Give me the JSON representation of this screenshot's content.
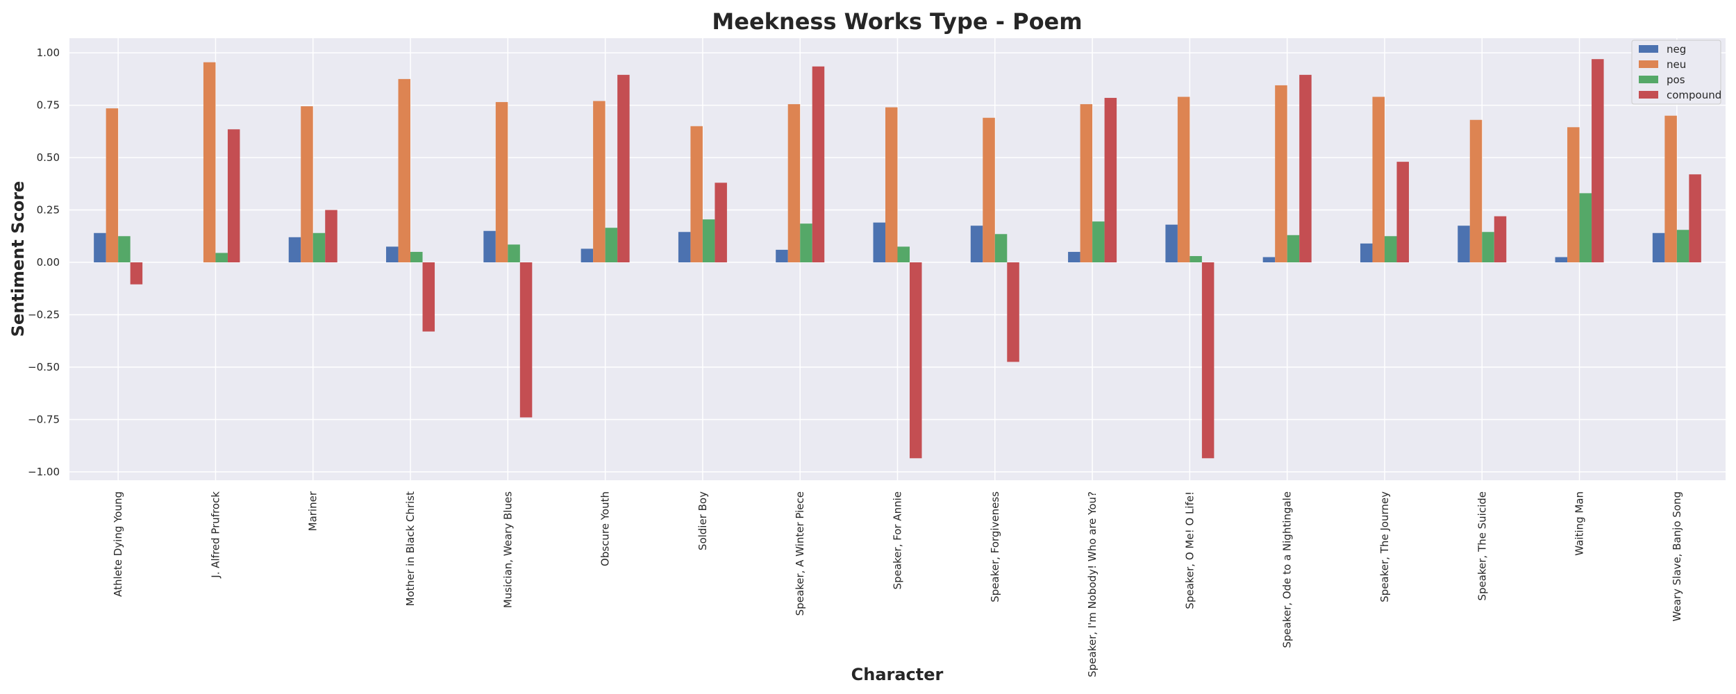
{
  "chart_data": {
    "type": "bar",
    "title": "Meekness Works Type - Poem",
    "xlabel": "Character",
    "ylabel": "Sentiment Score",
    "ylim": [
      -1.04,
      1.07
    ],
    "yticks": [
      "1.00",
      "0.75",
      "0.50",
      "0.25",
      "0.00",
      "−0.25",
      "−0.50",
      "−0.75",
      "−1.00"
    ],
    "ytick_values": [
      1.0,
      0.75,
      0.5,
      0.25,
      0.0,
      -0.25,
      -0.5,
      -0.75,
      -1.0
    ],
    "grid": true,
    "legend_position": "top-right",
    "categories": [
      "Athlete Dying Young",
      "J. Alfred Prufrock",
      "Mariner",
      "Mother in Black Christ",
      "Musician, Weary Blues",
      "Obscure Youth",
      "Soldier Boy",
      "Speaker, A Winter Piece",
      "Speaker, For Annie",
      "Speaker, Forgiveness",
      "Speaker, I'm Nobody! Who are You?",
      "Speaker, O Me! O Life!",
      "Speaker, Ode to a Nightingale",
      "Speaker, The Journey",
      "Speaker, The Suicide",
      "Waiting Man",
      "Weary Slave, Banjo Song"
    ],
    "series": [
      {
        "name": "neg",
        "color": "#4c72b0",
        "values": [
          0.14,
          0.0,
          0.12,
          0.075,
          0.15,
          0.065,
          0.145,
          0.06,
          0.19,
          0.175,
          0.05,
          0.18,
          0.025,
          0.09,
          0.175,
          0.025,
          0.14
        ]
      },
      {
        "name": "neu",
        "color": "#dd8452",
        "values": [
          0.735,
          0.955,
          0.745,
          0.875,
          0.765,
          0.77,
          0.65,
          0.755,
          0.74,
          0.69,
          0.755,
          0.79,
          0.845,
          0.79,
          0.68,
          0.645,
          0.7
        ]
      },
      {
        "name": "pos",
        "color": "#55a868",
        "values": [
          0.125,
          0.045,
          0.14,
          0.05,
          0.085,
          0.165,
          0.205,
          0.185,
          0.075,
          0.135,
          0.195,
          0.03,
          0.13,
          0.125,
          0.145,
          0.33,
          0.155
        ]
      },
      {
        "name": "compound",
        "color": "#c44e52",
        "values": [
          -0.105,
          0.635,
          0.25,
          -0.33,
          -0.74,
          0.895,
          0.38,
          0.935,
          -0.935,
          -0.475,
          0.785,
          -0.935,
          0.895,
          0.48,
          0.22,
          0.97,
          0.42
        ]
      }
    ]
  }
}
